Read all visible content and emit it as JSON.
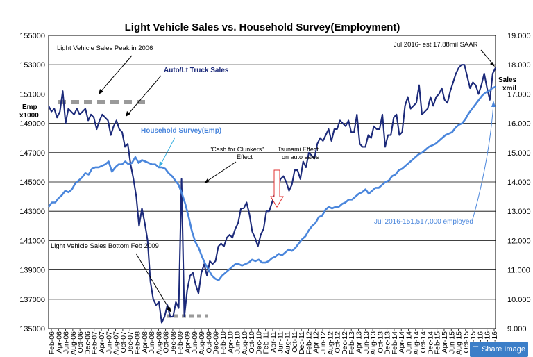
{
  "chart_data": {
    "type": "line",
    "title": "Light Vehicle Sales vs. Household Survey(Employment)",
    "left_axis": {
      "label_line1": "Emp",
      "label_line2": "x1000",
      "min": 135000,
      "max": 155000,
      "step": 2000,
      "ticks": [
        "135000",
        "137000",
        "139000",
        "141000",
        "143000",
        "145000",
        "147000",
        "149000",
        "151000",
        "153000",
        "155000"
      ]
    },
    "right_axis": {
      "label_line1": "Sales",
      "label_line2": "xmil",
      "min": 9.0,
      "max": 19.0,
      "step": 1.0,
      "ticks": [
        "9.000",
        "10.000",
        "11.000",
        "12.000",
        "13.000",
        "14.000",
        "15.000",
        "16.000",
        "17.000",
        "18.000",
        "19.000"
      ]
    },
    "grid": "horizontal",
    "x_labels": [
      "Feb-06",
      "Apr-06",
      "Jun-06",
      "Aug-06",
      "Oct-06",
      "Dec-06",
      "Feb-07",
      "Apr-07",
      "Jun-07",
      "Aug-07",
      "Oct-07",
      "Dec-07",
      "Feb-08",
      "Apr-08",
      "Jun-08",
      "Aug-08",
      "Oct-08",
      "Dec-08",
      "Feb-09",
      "Apr-09",
      "Jun-09",
      "Aug-09",
      "Oct-09",
      "Dec-09",
      "Feb-10",
      "Apr-10",
      "Jun-10",
      "Aug-10",
      "Oct-10",
      "Dec-10",
      "Feb-11",
      "Apr-11",
      "Jun-11",
      "Aug-11",
      "Oct-11",
      "Dec-11",
      "Feb-12",
      "Apr-12",
      "Jun-12",
      "Aug-12",
      "Oct-12",
      "Dec-12",
      "Feb-13",
      "Apr-13",
      "Jun-13",
      "Aug-13",
      "Oct-13",
      "Dec-13",
      "Feb-14",
      "Apr-14",
      "Jun-14",
      "Aug-14",
      "Oct-14",
      "Dec-14",
      "Feb-15",
      "Apr-15",
      "Jun-15",
      "Aug-15",
      "Oct-15",
      "Dec-15",
      "Feb-16",
      "Apr-16",
      "Jun-16"
    ],
    "series": [
      {
        "name": "Auto/Lt Truck Sales",
        "axis": "right",
        "color": "#1c2a7a",
        "values": [
          16.6,
          16.4,
          16.5,
          16.2,
          16.4,
          17.1,
          16.0,
          16.5,
          16.4,
          16.3,
          16.5,
          16.3,
          16.4,
          16.5,
          16.1,
          16.3,
          16.2,
          15.8,
          16.1,
          16.3,
          16.2,
          16.1,
          15.6,
          15.9,
          16.1,
          15.8,
          15.7,
          15.2,
          15.3,
          14.6,
          14.1,
          13.5,
          12.5,
          13.1,
          12.6,
          12.0,
          10.6,
          10.0,
          9.8,
          9.9,
          9.2,
          9.4,
          9.8,
          9.4,
          9.4,
          9.9,
          9.7,
          14.1,
          9.4,
          10.3,
          10.8,
          10.9,
          10.5,
          10.2,
          10.9,
          11.2,
          10.8,
          11.3,
          11.2,
          11.3,
          11.8,
          11.9,
          11.8,
          12.1,
          12.2,
          12.1,
          12.4,
          12.6,
          13.1,
          13.1,
          13.3,
          12.9,
          12.3,
          12.1,
          11.8,
          12.2,
          12.4,
          13.0,
          13.0,
          13.3,
          13.6,
          13.8,
          14.1,
          14.2,
          14.0,
          13.7,
          13.9,
          14.4,
          14.4,
          14.1,
          14.7,
          14.5,
          15.0,
          14.9,
          14.8,
          15.3,
          15.5,
          15.4,
          15.6,
          15.8,
          15.4,
          15.8,
          15.8,
          16.1,
          16.0,
          15.9,
          16.1,
          15.7,
          15.7,
          16.3,
          15.3,
          15.2,
          15.2,
          15.6,
          15.5,
          15.9,
          15.8,
          15.8,
          16.3,
          15.2,
          15.6,
          15.6,
          16.2,
          16.3,
          15.6,
          15.7,
          16.6,
          16.9,
          16.5,
          16.6,
          16.7,
          17.3,
          16.3,
          16.4,
          16.5,
          16.9,
          16.6,
          16.9,
          17.0,
          17.2,
          16.8,
          16.7,
          17.1,
          17.4,
          17.7,
          17.9,
          18.0,
          18.0,
          17.6,
          17.2,
          17.4,
          17.3,
          17.0,
          17.3,
          17.7,
          17.2,
          16.8,
          17.7,
          17.9
        ]
      },
      {
        "name": "Household Survey(Emp)",
        "axis": "left",
        "color": "#4a86dc",
        "values": [
          143300,
          143600,
          143600,
          143900,
          144100,
          144400,
          144300,
          144500,
          144900,
          145100,
          145300,
          145600,
          145500,
          145900,
          146000,
          146000,
          146100,
          146200,
          146400,
          145700,
          146000,
          146200,
          146200,
          146400,
          146200,
          146300,
          146700,
          146300,
          146500,
          146400,
          146300,
          146200,
          146200,
          146000,
          146000,
          145900,
          145600,
          145400,
          145100,
          144800,
          144200,
          143500,
          142600,
          141600,
          140900,
          140500,
          139900,
          139400,
          139000,
          138600,
          138400,
          138300,
          138600,
          138800,
          139000,
          139200,
          139400,
          139400,
          139300,
          139400,
          139500,
          139700,
          139600,
          139700,
          139500,
          139500,
          139600,
          139800,
          139900,
          140100,
          140000,
          140200,
          140400,
          140300,
          140500,
          140800,
          141100,
          141300,
          141700,
          142000,
          142200,
          142600,
          142700,
          143100,
          143300,
          143200,
          143300,
          143300,
          143500,
          143600,
          143800,
          143800,
          144000,
          144200,
          144300,
          144500,
          144200,
          144400,
          144600,
          144600,
          144800,
          145000,
          145100,
          145400,
          145500,
          145800,
          145900,
          146100,
          146300,
          146500,
          146700,
          146900,
          147000,
          147200,
          147400,
          147500,
          147600,
          147800,
          148000,
          148200,
          148300,
          148400,
          148700,
          148900,
          149000,
          149300,
          149700,
          150000,
          150300,
          150600,
          150900,
          151100,
          151200,
          151400,
          151500
        ]
      }
    ],
    "annotations": [
      {
        "id": "peak",
        "text": "Light Vehicle Sales Peak in 2006"
      },
      {
        "id": "auto",
        "text": "Auto/Lt Truck Sales"
      },
      {
        "id": "household",
        "text": "Household Survey(Emp)"
      },
      {
        "id": "clunkers1",
        "text": "\"Cash for Clunkers\""
      },
      {
        "id": "clunkers2",
        "text": "Effect"
      },
      {
        "id": "tsunami1",
        "text": "Tsunami Effect"
      },
      {
        "id": "tsunami2",
        "text": "on auto sales"
      },
      {
        "id": "bottom",
        "text": "Light Vehicle Sales Bottom Feb 2009"
      },
      {
        "id": "jul2016sales",
        "text": "Jul 2016- est 17.88mil SAAR"
      },
      {
        "id": "jul2016emp",
        "text": "Jul 2016-151,517,000  employed"
      }
    ]
  },
  "share_button": {
    "label": "Share Image"
  }
}
